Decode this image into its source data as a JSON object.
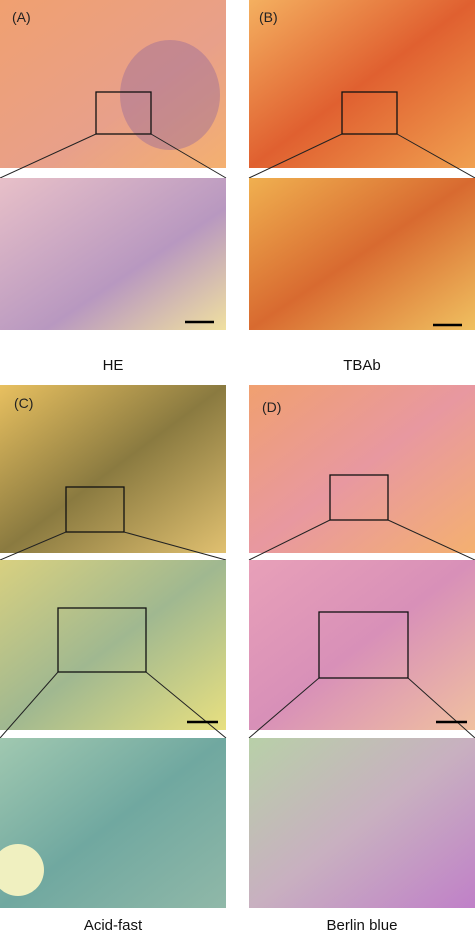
{
  "panels": [
    {
      "label": "(A)",
      "caption": "HE"
    },
    {
      "label": "(B)",
      "caption": "TBAb"
    },
    {
      "label": "(C)",
      "caption": "Acid-fast"
    },
    {
      "label": "(D)",
      "caption": "Berlin blue"
    }
  ]
}
